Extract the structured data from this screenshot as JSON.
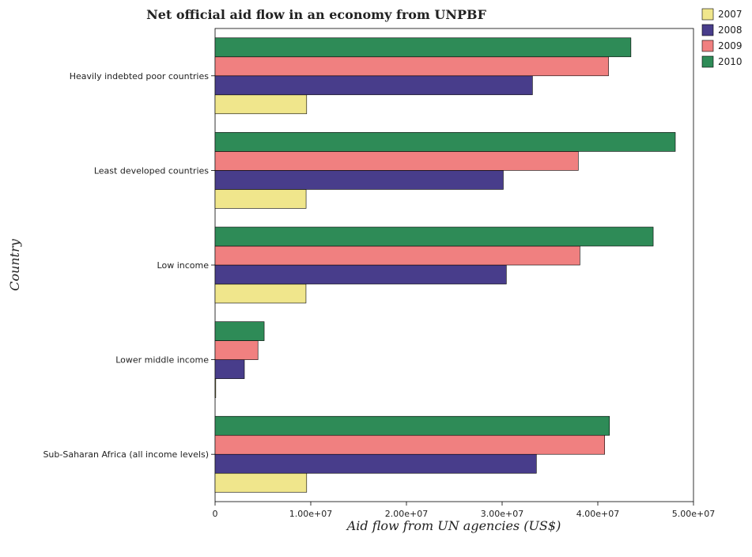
{
  "chart_data": {
    "type": "bar",
    "orientation": "horizontal",
    "title": "Net official aid flow in an economy from UNPBF",
    "xlabel": "Aid flow from UN agencies (US$)",
    "ylabel": "Country",
    "xlim": [
      0,
      50000000
    ],
    "x_ticks": [
      0,
      10000000,
      20000000,
      30000000,
      40000000,
      50000000
    ],
    "x_tick_labels": [
      "0",
      "1.00e+07",
      "2.00e+07",
      "3.00e+07",
      "4.00e+07",
      "5.00e+07"
    ],
    "grid": false,
    "legend_position": "top-right",
    "categories": [
      "Heavily indebted poor countries",
      "Least developed countries",
      "Low income",
      "Lower middle income",
      "Sub-Saharan Africa (all income levels)"
    ],
    "series": [
      {
        "name": "2007",
        "color": "#f0e68c",
        "values": [
          9570000,
          9510000,
          9500000,
          70000,
          9570000
        ]
      },
      {
        "name": "2008",
        "color": "#483d8b",
        "values": [
          33170000,
          30120000,
          30440000,
          3060000,
          33580000
        ]
      },
      {
        "name": "2009",
        "color": "#f08080",
        "values": [
          41120000,
          37960000,
          38130000,
          4480000,
          40720000
        ]
      },
      {
        "name": "2010",
        "color": "#2e8b57",
        "values": [
          43460000,
          48100000,
          45790000,
          5130000,
          41220000
        ]
      }
    ]
  }
}
